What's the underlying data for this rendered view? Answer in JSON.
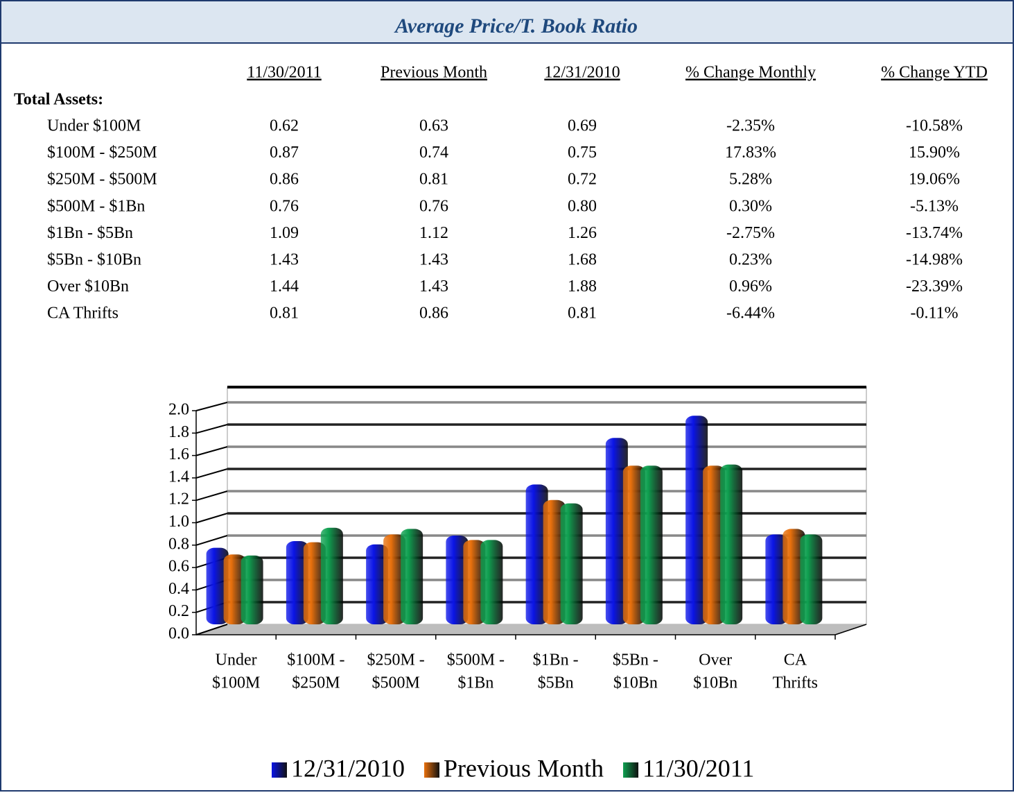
{
  "header": {
    "title": "Average Price/T. Book Ratio"
  },
  "table": {
    "label": "Total Assets:",
    "columns": [
      "11/30/2011",
      "Previous Month",
      "12/31/2010",
      "% Change Monthly",
      "% Change YTD"
    ],
    "rows": [
      [
        "Under $100M",
        "0.62",
        "0.63",
        "0.69",
        "-2.35%",
        "-10.58%"
      ],
      [
        "$100M - $250M",
        "0.87",
        "0.74",
        "0.75",
        "17.83%",
        "15.90%"
      ],
      [
        "$250M - $500M",
        "0.86",
        "0.81",
        "0.72",
        "5.28%",
        "19.06%"
      ],
      [
        "$500M - $1Bn",
        "0.76",
        "0.76",
        "0.80",
        "0.30%",
        "-5.13%"
      ],
      [
        "$1Bn - $5Bn",
        "1.09",
        "1.12",
        "1.26",
        "-2.75%",
        "-13.74%"
      ],
      [
        "$5Bn - $10Bn",
        "1.43",
        "1.43",
        "1.68",
        "0.23%",
        "-14.98%"
      ],
      [
        "Over $10Bn",
        "1.44",
        "1.43",
        "1.88",
        "0.96%",
        "-23.39%"
      ],
      [
        "CA Thrifts",
        "0.81",
        "0.86",
        "0.81",
        "-6.44%",
        "-0.11%"
      ]
    ]
  },
  "chart_data": {
    "type": "bar",
    "categories": [
      [
        "Under",
        "$100M"
      ],
      [
        "$100M -",
        "$250M"
      ],
      [
        "$250M -",
        "$500M"
      ],
      [
        "$500M -",
        "$1Bn"
      ],
      [
        "$1Bn -",
        "$5Bn"
      ],
      [
        "$5Bn -",
        "$10Bn"
      ],
      [
        "Over",
        "$10Bn"
      ],
      [
        "CA",
        "Thrifts"
      ]
    ],
    "series": [
      {
        "name": "12/31/2010",
        "color": "#0a14e6",
        "values": [
          0.69,
          0.75,
          0.72,
          0.8,
          1.26,
          1.68,
          1.88,
          0.81
        ]
      },
      {
        "name": "Previous Month",
        "color": "#e8700c",
        "values": [
          0.63,
          0.74,
          0.81,
          0.76,
          1.12,
          1.43,
          1.43,
          0.86
        ]
      },
      {
        "name": "11/30/2011",
        "color": "#0fa050",
        "values": [
          0.62,
          0.87,
          0.86,
          0.76,
          1.09,
          1.43,
          1.44,
          0.81
        ]
      }
    ],
    "ylim": [
      0,
      2
    ],
    "yticks": [
      {
        "value": 0,
        "label": "0.0"
      },
      0.2,
      0.4,
      0.6,
      0.8,
      {
        "value": 1,
        "label": "1.0"
      },
      1.2,
      1.4,
      1.6,
      1.8,
      {
        "value": 2,
        "label": "2.0"
      }
    ],
    "grid": true,
    "legend": "bottom"
  }
}
